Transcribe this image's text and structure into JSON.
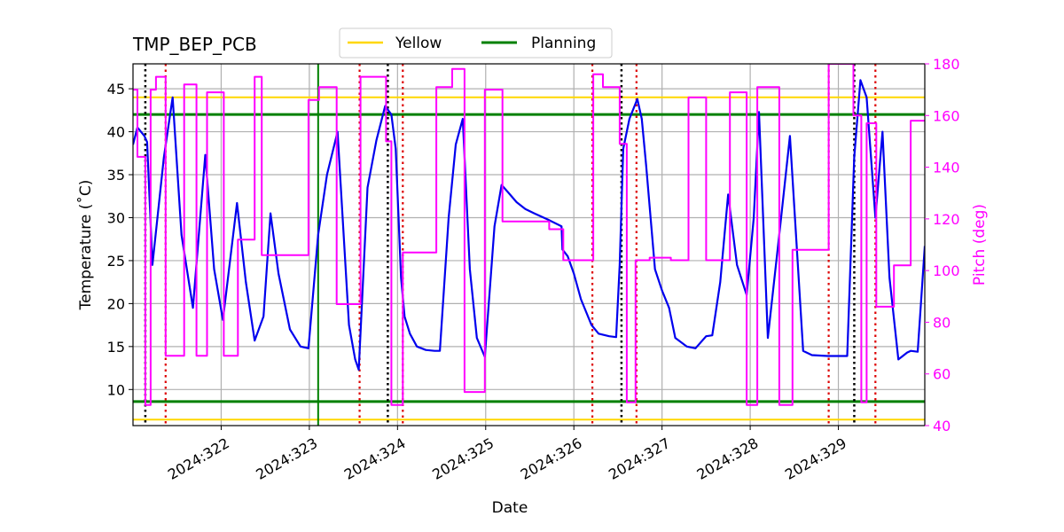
{
  "chart_data": {
    "type": "line",
    "title": "TMP_BEP_PCB",
    "xlabel": "Date",
    "ylabel_left": "Temperature ($^\\circ$C)",
    "ylabel_left_display": "Temperature (˚C)",
    "ylabel_right": "Pitch (deg)",
    "x_unit": "day of year 2024",
    "xlim": [
      321.0,
      329.98
    ],
    "ylim_left": [
      5.8,
      47.9
    ],
    "ylim_right": [
      40,
      180
    ],
    "x_ticks": [
      322,
      323,
      324,
      325,
      326,
      327,
      328,
      329
    ],
    "x_tick_labels": [
      "2024:322",
      "2024:323",
      "2024:324",
      "2024:325",
      "2024:326",
      "2024:327",
      "2024:328",
      "2024:329"
    ],
    "y_left_ticks": [
      10,
      15,
      20,
      25,
      30,
      35,
      40,
      45
    ],
    "y_left_tick_labels": [
      "10",
      "15",
      "20",
      "25",
      "30",
      "35",
      "40",
      "45"
    ],
    "y_right_ticks": [
      40,
      60,
      80,
      100,
      120,
      140,
      160,
      180
    ],
    "y_right_tick_labels": [
      "40",
      "60",
      "80",
      "100",
      "120",
      "140",
      "160",
      "180"
    ],
    "grid": true,
    "legend": {
      "placement": "top-center-outside",
      "entries": [
        "Yellow",
        "Planning"
      ]
    },
    "colors": {
      "temperature": "#0000ee",
      "pitch": "#ff00ff",
      "yellow": "#ffd700",
      "planning": "#008000",
      "red_markers": "#dd0000",
      "black_markers": "#000000",
      "grid": "#b0b0b0"
    },
    "thresholds": {
      "yellow": [
        6.5,
        44.0
      ],
      "planning": [
        8.6,
        42.0
      ]
    },
    "vertical_markers": {
      "black_dotted": [
        321.14,
        323.89,
        326.54,
        329.18
      ],
      "red_dotted": [
        321.37,
        323.57,
        324.06,
        326.21,
        326.71,
        328.89,
        329.42
      ],
      "green_solid": [
        323.1
      ]
    },
    "series": [
      {
        "name": "Temperature",
        "axis": "left",
        "x": [
          321.0,
          321.05,
          321.13,
          321.16,
          321.22,
          321.35,
          321.45,
          321.55,
          321.68,
          321.82,
          321.92,
          322.02,
          322.18,
          322.28,
          322.38,
          322.48,
          322.56,
          322.65,
          322.78,
          322.9,
          322.99,
          323.1,
          323.2,
          323.32,
          323.45,
          323.52,
          323.56,
          323.66,
          323.76,
          323.86,
          323.93,
          323.98,
          324.04,
          324.08,
          324.14,
          324.22,
          324.32,
          324.42,
          324.48,
          324.58,
          324.66,
          324.74,
          324.82,
          324.9,
          324.99,
          325.1,
          325.18,
          325.25,
          325.35,
          325.45,
          325.55,
          325.7,
          325.86,
          325.87,
          325.93,
          326.0,
          326.08,
          326.2,
          326.28,
          326.4,
          326.48,
          326.52,
          326.56,
          326.63,
          326.72,
          326.77,
          326.82,
          326.92,
          327.0,
          327.08,
          327.15,
          327.28,
          327.38,
          327.5,
          327.57,
          327.66,
          327.75,
          327.85,
          327.96,
          328.04,
          328.1,
          328.2,
          328.34,
          328.45,
          328.6,
          328.7,
          328.88,
          328.98,
          329.1,
          329.18,
          329.25,
          329.32,
          329.42,
          329.5,
          329.58,
          329.68,
          329.78,
          329.82,
          329.9,
          329.98
        ],
        "y": [
          38.5,
          40.5,
          39.5,
          38.8,
          24.5,
          37.0,
          44.0,
          28.0,
          19.5,
          37.3,
          24.0,
          18.1,
          31.7,
          22.5,
          15.7,
          18.5,
          30.5,
          23.5,
          17.0,
          15.0,
          14.8,
          28.0,
          35.0,
          40.0,
          17.5,
          13.5,
          12.3,
          33.5,
          39.0,
          43.0,
          42.0,
          38.0,
          23.0,
          18.5,
          16.5,
          15.0,
          14.6,
          14.5,
          14.5,
          30.0,
          38.5,
          41.5,
          24.0,
          16.0,
          13.8,
          29.0,
          33.8,
          33.0,
          31.8,
          31.0,
          30.5,
          29.8,
          29.0,
          26.3,
          25.5,
          23.5,
          20.5,
          17.5,
          16.5,
          16.2,
          16.1,
          24.5,
          38.0,
          41.5,
          43.8,
          41.5,
          36.0,
          24.0,
          21.5,
          19.5,
          16.0,
          15.0,
          14.8,
          16.2,
          16.3,
          22.5,
          32.7,
          24.5,
          21.0,
          30.0,
          42.3,
          16.0,
          29.0,
          39.5,
          14.5,
          14.0,
          13.9,
          13.9,
          13.9,
          37.0,
          46.0,
          44.0,
          30.0,
          40.0,
          23.0,
          13.5,
          14.3,
          14.5,
          14.4,
          26.7
        ]
      },
      {
        "name": "Pitch",
        "axis": "right",
        "x": [
          321.0,
          321.05,
          321.05,
          321.14,
          321.14,
          321.2,
          321.2,
          321.26,
          321.26,
          321.37,
          321.37,
          321.58,
          321.58,
          321.72,
          321.72,
          321.84,
          321.84,
          322.03,
          322.03,
          322.19,
          322.19,
          322.38,
          322.38,
          322.46,
          322.46,
          322.55,
          322.55,
          322.58,
          322.58,
          322.99,
          322.99,
          323.11,
          323.11,
          323.31,
          323.31,
          323.58,
          323.58,
          323.87,
          323.87,
          323.93,
          323.93,
          324.06,
          324.06,
          324.44,
          324.44,
          324.62,
          324.62,
          324.73,
          324.73,
          324.76,
          324.76,
          324.99,
          324.99,
          325.19,
          325.19,
          325.72,
          325.72,
          325.88,
          325.88,
          326.22,
          326.22,
          326.33,
          326.33,
          326.52,
          326.52,
          326.6,
          326.6,
          326.7,
          326.7,
          326.86,
          326.86,
          327.1,
          327.1,
          327.3,
          327.3,
          327.5,
          327.5,
          327.77,
          327.77,
          327.96,
          327.96,
          328.08,
          328.08,
          328.33,
          328.33,
          328.48,
          328.48,
          328.89,
          328.89,
          329.17,
          329.17,
          329.26,
          329.26,
          329.32,
          329.32,
          329.43,
          329.43,
          329.63,
          329.63,
          329.82,
          329.82,
          329.98
        ],
        "y": [
          170,
          170,
          144,
          144,
          48,
          48,
          170,
          170,
          175,
          175,
          67,
          67,
          172,
          172,
          67,
          67,
          169,
          169,
          67,
          67,
          112,
          112,
          175,
          175,
          106,
          106,
          106,
          106,
          106,
          106,
          166,
          166,
          171,
          171,
          87,
          87,
          175,
          175,
          150,
          150,
          48,
          48,
          107,
          107,
          171,
          171,
          178,
          178,
          178,
          178,
          53,
          53,
          170,
          170,
          119,
          119,
          116,
          116,
          104,
          104,
          176,
          176,
          171,
          171,
          149,
          149,
          49,
          49,
          104,
          104,
          105,
          105,
          104,
          104,
          167,
          167,
          104,
          104,
          169,
          169,
          48,
          48,
          171,
          171,
          48,
          48,
          108,
          108,
          180,
          180,
          160,
          160,
          49,
          49,
          157,
          157,
          86,
          86,
          102,
          102,
          158,
          158
        ]
      }
    ]
  }
}
